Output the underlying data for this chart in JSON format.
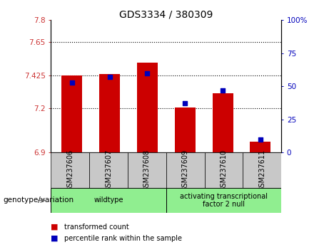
{
  "title": "GDS3334 / 380309",
  "categories": [
    "GSM237606",
    "GSM237607",
    "GSM237608",
    "GSM237609",
    "GSM237610",
    "GSM237611"
  ],
  "bar_values": [
    7.425,
    7.435,
    7.51,
    7.205,
    7.305,
    6.975
  ],
  "percentile_values": [
    53,
    57,
    60,
    37,
    47,
    10
  ],
  "ylim_left": [
    6.9,
    7.8
  ],
  "ylim_right": [
    0,
    100
  ],
  "yticks_left": [
    6.9,
    7.2,
    7.425,
    7.65,
    7.8
  ],
  "ytick_labels_left": [
    "6.9",
    "7.2",
    "7.425",
    "7.65",
    "7.8"
  ],
  "yticks_right": [
    0,
    25,
    50,
    75,
    100
  ],
  "ytick_labels_right": [
    "0",
    "25",
    "50",
    "75",
    "100%"
  ],
  "hlines": [
    7.2,
    7.425,
    7.65
  ],
  "bar_color": "#cc0000",
  "dot_color": "#0000bb",
  "bar_width": 0.55,
  "groups": [
    {
      "label": "wildtype",
      "start": 0,
      "end": 3
    },
    {
      "label": "activating transcriptional\nfactor 2 null",
      "start": 3,
      "end": 6
    }
  ],
  "group_color": "#90ee90",
  "tick_area_color": "#c8c8c8",
  "xlabel_label": "genotype/variation",
  "legend_items": [
    {
      "color": "#cc0000",
      "label": "transformed count"
    },
    {
      "color": "#0000bb",
      "label": "percentile rank within the sample"
    }
  ],
  "title_fontsize": 10,
  "tick_fontsize": 7.5,
  "label_fontsize": 8
}
